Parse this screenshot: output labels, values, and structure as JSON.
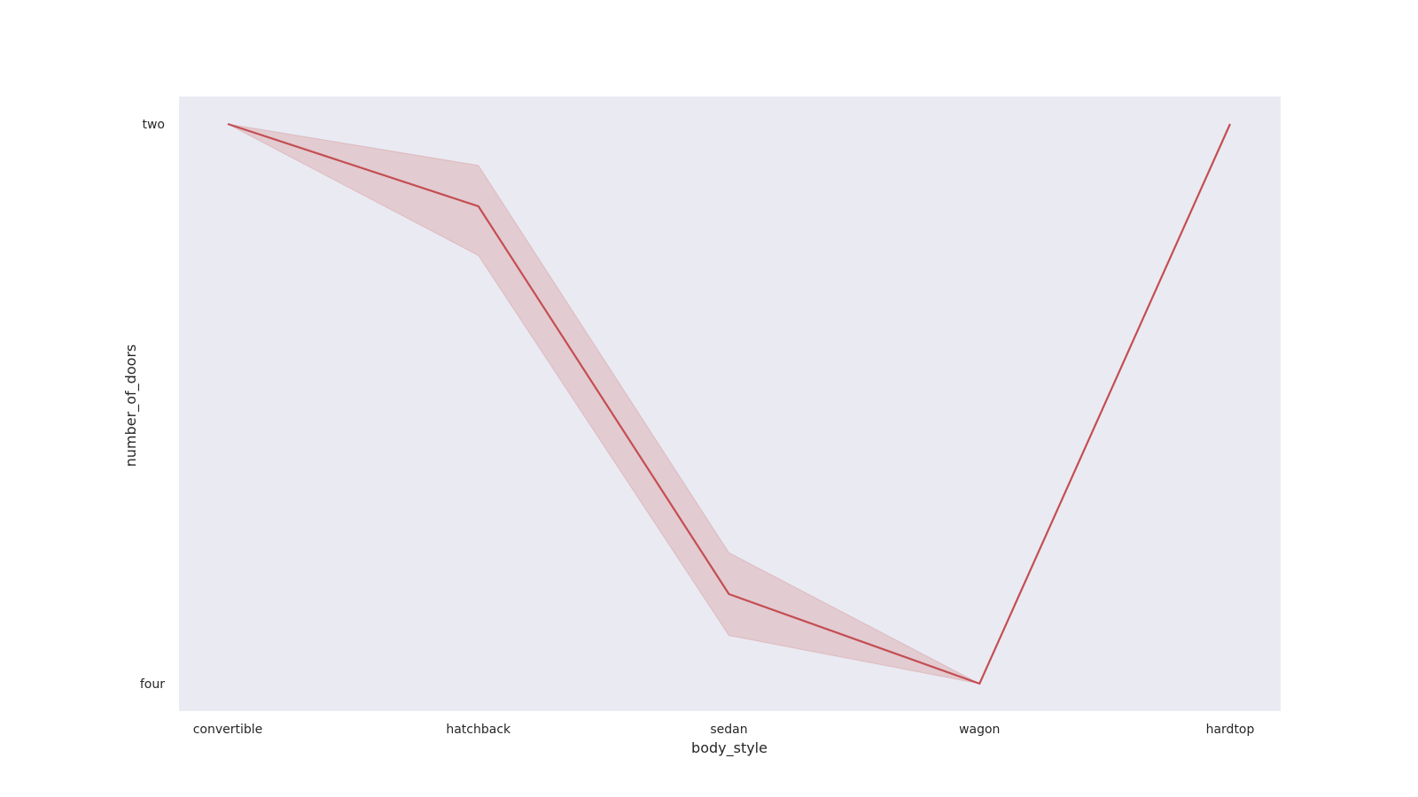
{
  "chart_data": {
    "type": "line",
    "title": "",
    "xlabel": "body_style",
    "ylabel": "number_of_doors",
    "categories": [
      "convertible",
      "hatchback",
      "sedan",
      "wagon",
      "hardtop"
    ],
    "y_categories": [
      "two",
      "four"
    ],
    "y_scale": "categorical (two = 0, four = 1)",
    "ylim": [
      -0.05,
      1.05
    ],
    "grid": false,
    "legend": "none",
    "series": [
      {
        "values": [
          0.0,
          0.147,
          0.84,
          1.0,
          0.0
        ],
        "ci_low": [
          0.0,
          0.074,
          0.766,
          1.0,
          0.0
        ],
        "ci_high": [
          0.0,
          0.235,
          0.914,
          1.0,
          0.0
        ]
      }
    ],
    "colors": {
      "line": "#c44e52",
      "band": "#c44e52",
      "background": "#eaeaf2"
    }
  }
}
